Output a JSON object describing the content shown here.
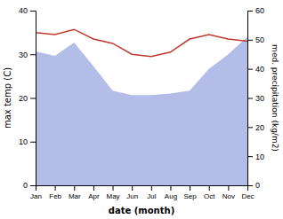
{
  "chart_data": {
    "type": "line",
    "categories": [
      "Jan",
      "Feb",
      "Mar",
      "Apr",
      "May",
      "Jun",
      "Jul",
      "Aug",
      "Sep",
      "Oct",
      "Nov",
      "Dec"
    ],
    "xlabel": "date (month)",
    "ylabel": "max temp (C)",
    "y2label": "med. precipitation (kg/m2)",
    "series": [
      {
        "type": "area",
        "axis": "y2",
        "color": "#b3bde8",
        "values": [
          46.0,
          44.5,
          49.0,
          41.0,
          32.5,
          31.0,
          31.0,
          31.5,
          32.5,
          40.0,
          45.0,
          51.0
        ]
      },
      {
        "type": "line",
        "color": "#c0392b",
        "values": [
          35.0,
          34.5,
          35.7,
          33.5,
          32.5,
          30.0,
          29.5,
          30.5,
          33.5,
          34.5,
          33.5,
          33.0
        ]
      }
    ],
    "ylim": [
      0,
      40
    ],
    "yticks": [
      0,
      10,
      20,
      30,
      40
    ],
    "y2lim": [
      0,
      60
    ],
    "y2ticks": [
      0,
      10,
      20,
      30,
      40,
      50,
      60
    ],
    "grid": false
  }
}
